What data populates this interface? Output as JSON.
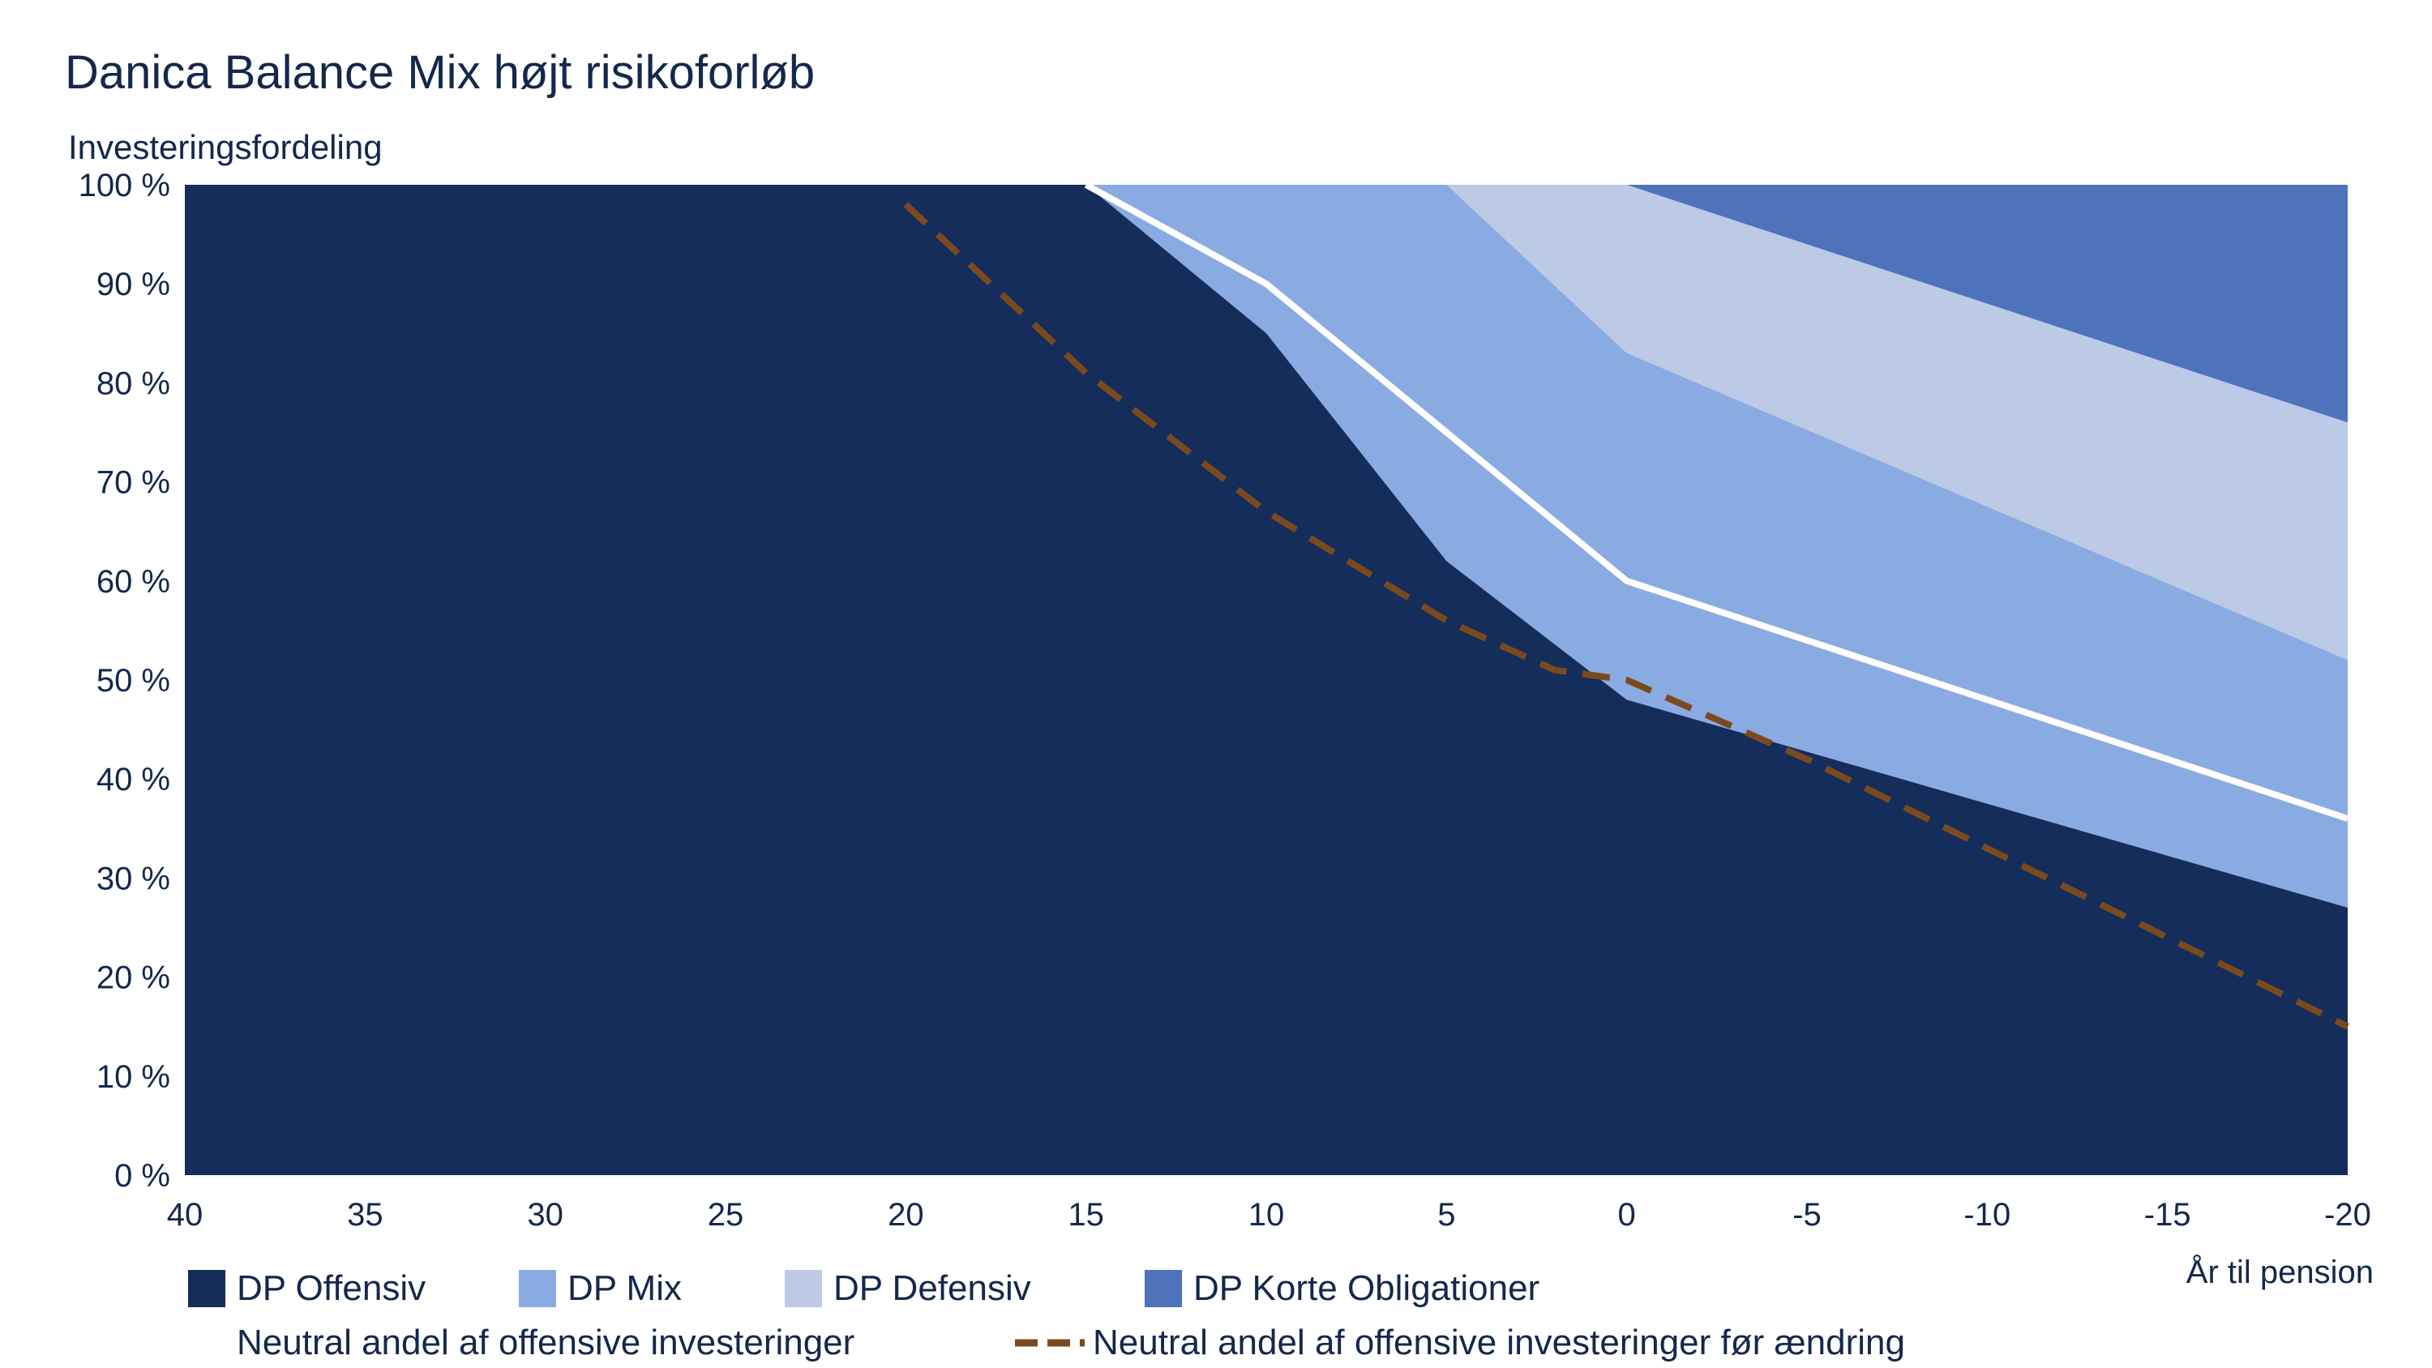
{
  "chart_data": {
    "type": "area",
    "title": "Danica Balance Mix højt risikoforløb",
    "ylabel": "Investeringsfordeling",
    "xlabel": "År til pension",
    "x": [
      40,
      35,
      30,
      25,
      20,
      15,
      10,
      5,
      0,
      -5,
      -10,
      -15,
      -20
    ],
    "x_ticks": [
      "40",
      "35",
      "30",
      "25",
      "20",
      "15",
      "10",
      "5",
      "0",
      "-5",
      "-10",
      "-15",
      "-20"
    ],
    "ylim": [
      0,
      100
    ],
    "y_ticks": [
      "0 %",
      "10 %",
      "20 %",
      "30 %",
      "40 %",
      "50 %",
      "60 %",
      "70 %",
      "80 %",
      "90 %",
      "100 %"
    ],
    "series": [
      {
        "name": "DP Offensiv",
        "color": "#152d5a",
        "points": [
          [
            40,
            100
          ],
          [
            15,
            100
          ],
          [
            10,
            85
          ],
          [
            5,
            62
          ],
          [
            0,
            48
          ],
          [
            -20,
            27
          ]
        ]
      },
      {
        "name": "DP Mix",
        "color": "#8aabe1",
        "points": [
          [
            40,
            100
          ],
          [
            15,
            100
          ],
          [
            5,
            100
          ],
          [
            0,
            83
          ],
          [
            -20,
            52
          ]
        ]
      },
      {
        "name": "DP Defensiv",
        "color": "#bccae6",
        "points": [
          [
            40,
            100
          ],
          [
            0,
            100
          ],
          [
            -20,
            76
          ]
        ]
      },
      {
        "name": "DP Korte Obligationer",
        "color": "#4e73bb",
        "points": [
          [
            40,
            100
          ],
          [
            -20,
            100
          ]
        ]
      }
    ],
    "lines": [
      {
        "name": "Neutral andel af offensive investeringer",
        "color": "#ffffff",
        "style": "solid",
        "points": [
          [
            15,
            100
          ],
          [
            10,
            90
          ],
          [
            0,
            60
          ],
          [
            -20,
            36
          ]
        ]
      },
      {
        "name": "Neutral andel af offensive investeringer før ændring",
        "color": "#7a4a1e",
        "style": "dashed",
        "points": [
          [
            20,
            98
          ],
          [
            15,
            81
          ],
          [
            10,
            67
          ],
          [
            5,
            56
          ],
          [
            2,
            51
          ],
          [
            0,
            50
          ],
          [
            -5,
            42
          ],
          [
            -10,
            33
          ],
          [
            -15,
            24
          ],
          [
            -20,
            15
          ]
        ]
      }
    ],
    "legend": {
      "offensiv": "DP Offensiv",
      "mix": "DP Mix",
      "defensiv": "DP Defensiv",
      "korte": "DP Korte Obligationer",
      "neutral": "Neutral andel af offensive investeringer",
      "neutral_before": "Neutral andel af offensive investeringer før ændring"
    }
  }
}
